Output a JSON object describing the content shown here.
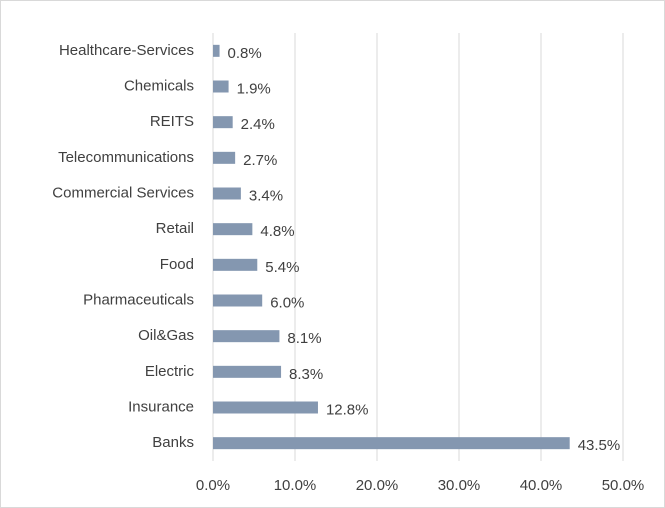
{
  "chart_data": {
    "type": "hbar",
    "categories": [
      "Healthcare-Services",
      "Chemicals",
      "REITS",
      "Telecommunications",
      "Commercial Services",
      "Retail",
      "Food",
      "Pharmaceuticals",
      "Oil&Gas",
      "Electric",
      "Insurance",
      "Banks"
    ],
    "values": [
      0.8,
      1.9,
      2.4,
      2.7,
      3.4,
      4.8,
      5.4,
      6.0,
      8.1,
      8.3,
      12.8,
      43.5
    ],
    "value_labels": [
      "0.8%",
      "1.9%",
      "2.4%",
      "2.7%",
      "3.4%",
      "4.8%",
      "5.4%",
      "6.0%",
      "8.1%",
      "8.3%",
      "12.8%",
      "43.5%"
    ],
    "color": "#8497b0",
    "xlim": [
      0,
      50
    ],
    "xticks": [
      {
        "value": 0,
        "label": "0.0%"
      },
      {
        "value": 10,
        "label": "10.0%"
      },
      {
        "value": 20,
        "label": "20.0%"
      },
      {
        "value": 30,
        "label": "30.0%"
      },
      {
        "value": 40,
        "label": "40.0%"
      },
      {
        "value": 50,
        "label": "50.0%"
      }
    ],
    "grid": true
  }
}
